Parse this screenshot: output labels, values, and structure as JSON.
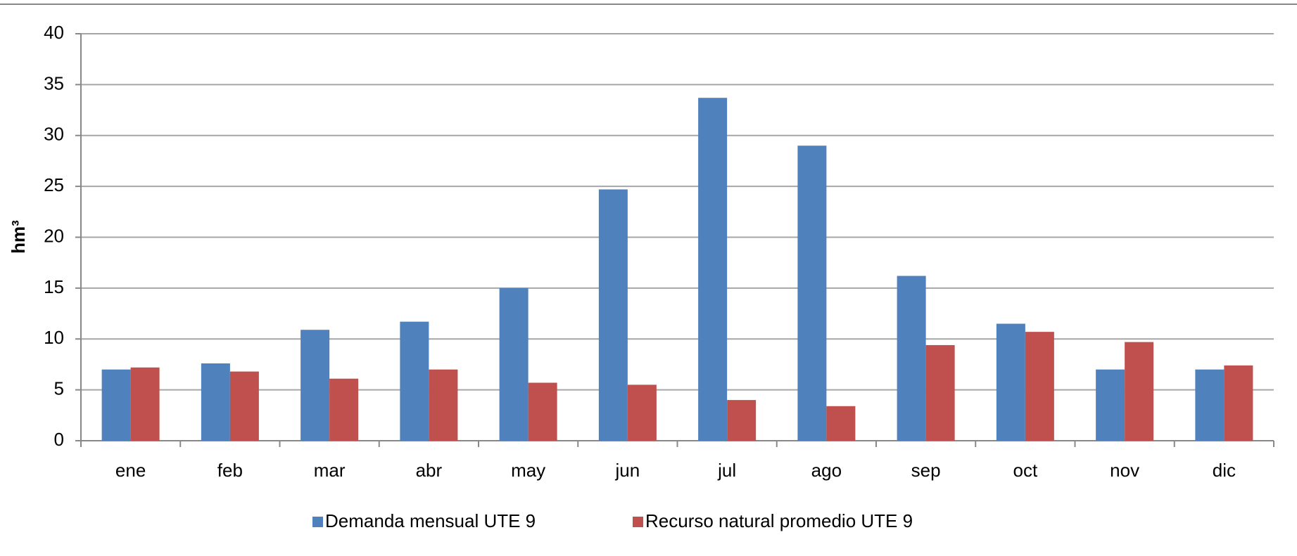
{
  "chart_data": {
    "type": "bar",
    "y_label": "hm³",
    "categories": [
      "ene",
      "feb",
      "mar",
      "abr",
      "may",
      "jun",
      "jul",
      "ago",
      "sep",
      "oct",
      "nov",
      "dic"
    ],
    "series": [
      {
        "name": "Demanda mensual UTE 9",
        "color": "#4f81bd",
        "values": [
          7.0,
          7.6,
          10.9,
          11.7,
          15.0,
          24.7,
          33.7,
          29.0,
          16.2,
          11.5,
          7.0,
          7.0
        ]
      },
      {
        "name": "Recurso natural promedio UTE 9",
        "color": "#c0504d",
        "values": [
          7.2,
          6.8,
          6.1,
          7.0,
          5.7,
          5.5,
          4.0,
          3.4,
          9.4,
          10.7,
          9.7,
          7.4
        ]
      }
    ],
    "ylim": [
      0,
      40
    ],
    "yticks": [
      0,
      5,
      10,
      15,
      20,
      25,
      30,
      35,
      40
    ],
    "grid": true
  }
}
